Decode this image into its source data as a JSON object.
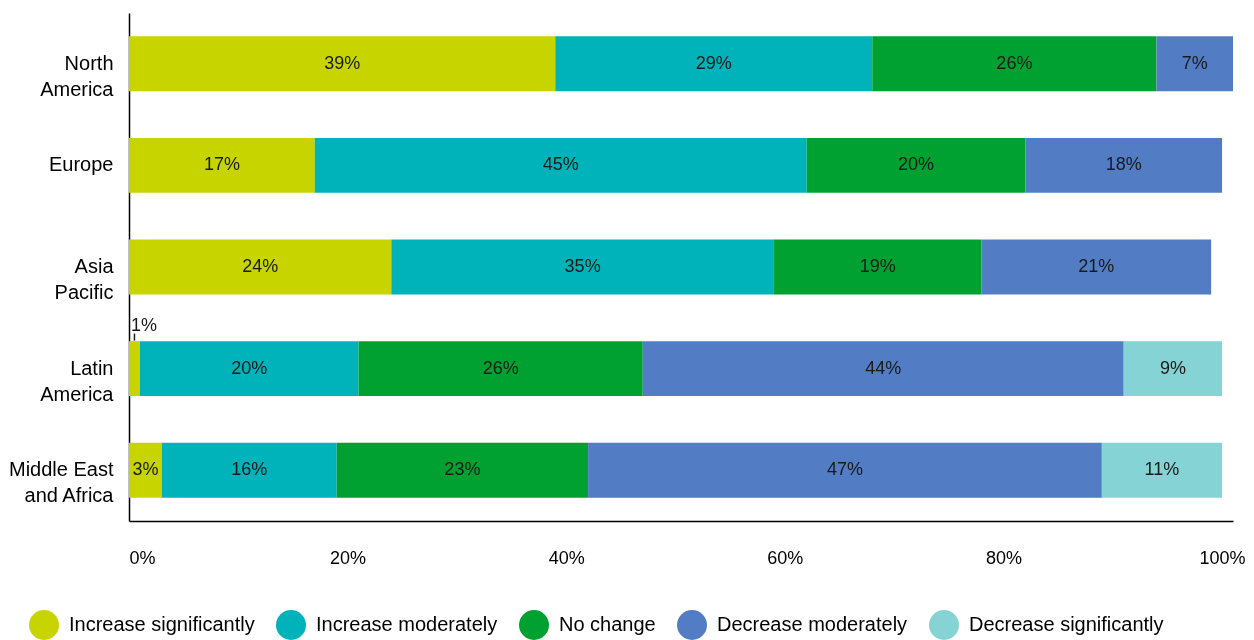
{
  "chart_data": {
    "type": "bar",
    "orientation": "horizontal",
    "stacked": true,
    "categories": [
      "North America",
      "Europe",
      "Asia Pacific",
      "Latin America",
      "Middle East and Africa"
    ],
    "series": [
      {
        "name": "Increase significantly",
        "color": "#c8d400",
        "values": [
          39,
          17,
          24,
          1,
          3
        ],
        "value_labels": [
          "39%",
          "17%",
          "24%",
          "1%",
          "3%"
        ]
      },
      {
        "name": "Increase moderately",
        "color": "#00b2b9",
        "values": [
          29,
          45,
          35,
          20,
          16
        ],
        "value_labels": [
          "29%",
          "45%",
          "35%",
          "20%",
          "16%"
        ]
      },
      {
        "name": "No change",
        "color": "#00a130",
        "values": [
          26,
          20,
          19,
          26,
          23
        ],
        "value_labels": [
          "26%",
          "20%",
          "19%",
          "26%",
          "23%"
        ]
      },
      {
        "name": "Decrease moderately",
        "color": "#527dc4",
        "values": [
          7,
          18,
          21,
          44,
          47
        ],
        "value_labels": [
          "7%",
          "18%",
          "21%",
          "44%",
          "47%"
        ]
      },
      {
        "name": "Decrease significantly",
        "color": "#85d3d4",
        "values": [
          null,
          null,
          null,
          9,
          11
        ],
        "value_labels": [
          null,
          null,
          null,
          "9%",
          "11%"
        ]
      }
    ],
    "xlim": [
      0,
      101
    ],
    "xticks": [
      {
        "value": 0,
        "label": "0%"
      },
      {
        "value": 20,
        "label": "20%"
      },
      {
        "value": 40,
        "label": "40%"
      },
      {
        "value": 60,
        "label": "60%"
      },
      {
        "value": 80,
        "label": "80%"
      },
      {
        "value": 100,
        "label": "100%"
      }
    ],
    "grid": false,
    "legend": "bottom"
  }
}
